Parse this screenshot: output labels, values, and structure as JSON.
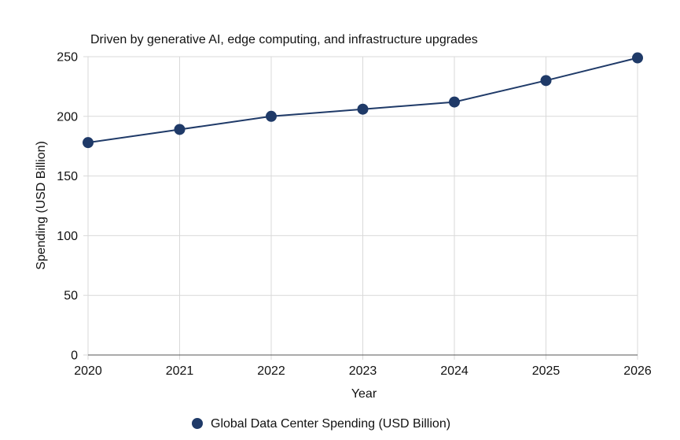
{
  "chart_data": {
    "type": "line",
    "subtitle": "Driven by generative AI, edge computing, and infrastructure upgrades",
    "xlabel": "Year",
    "ylabel": "Spending (USD Billion)",
    "x": [
      "2020",
      "2021",
      "2022",
      "2023",
      "2024",
      "2025",
      "2026"
    ],
    "series": [
      {
        "name": "Global Data Center Spending (USD Billion)",
        "values": [
          178,
          189,
          200,
          206,
          212,
          230,
          249
        ],
        "color": "#1f3a68"
      }
    ],
    "ylim": [
      0,
      250
    ],
    "yticks": [
      0,
      50,
      100,
      150,
      200,
      250
    ],
    "grid": true,
    "legend": "bottom-center",
    "colors": {
      "grid": "#d9d9d9",
      "axis": "#555555"
    }
  }
}
